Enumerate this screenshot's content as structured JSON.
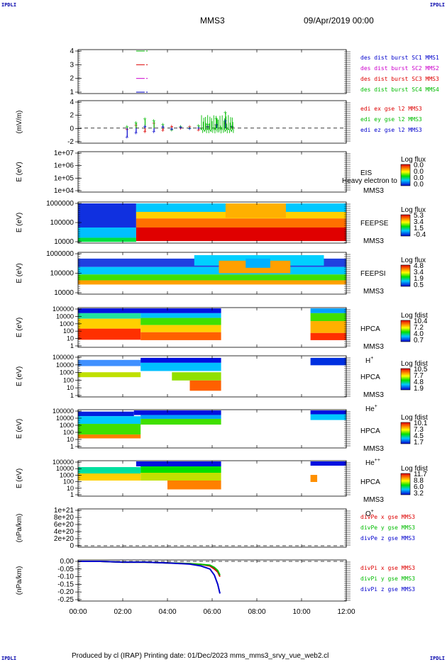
{
  "corner_label": "IPDLI",
  "header": {
    "spacecraft": "MMS3",
    "date": "09/Apr/2019 00:00"
  },
  "footer": {
    "text": "Produced by cl (IRAP)   Printing date: 01/Dec/2023   mms_mms3_srvy_vue_web2.cl"
  },
  "x_axis": {
    "ticks": [
      "00:00",
      "02:00",
      "04:00",
      "06:00",
      "08:00",
      "10:00",
      "12:00"
    ],
    "range_hours": [
      0,
      12
    ]
  },
  "colors": {
    "red": "#dd0000",
    "green": "#00bb00",
    "blue": "#0000cc",
    "magenta": "#cc00cc",
    "pink": "#cc33cc"
  },
  "panels": {
    "des": {
      "yticks": [
        "1",
        "2",
        "3",
        "4"
      ],
      "labels": [
        {
          "text": "des dist burst SC1 MMS1",
          "color": "#0000cc"
        },
        {
          "text": "des dist burst SC2 MMS2",
          "color": "#cc00cc"
        },
        {
          "text": "des dist burst SC3 MMS3",
          "color": "#dd0000"
        },
        {
          "text": "des dist burst SC4 MMS4",
          "color": "#00bb00"
        }
      ]
    },
    "edi": {
      "ylabel": "(mV/m)",
      "yticks": [
        "-2",
        "0",
        "2",
        "4"
      ],
      "labels": [
        {
          "text": "edi ex gse l2 MMS3",
          "color": "#dd0000"
        },
        {
          "text": "edi ey gse l2 MMS3",
          "color": "#00bb00"
        },
        {
          "text": "edi ez gse l2 MMS3",
          "color": "#0000cc"
        }
      ]
    },
    "eis": {
      "ylabel": "E (eV)",
      "yticks": [
        "1e+04",
        "1e+05",
        "1e+06",
        "1e+07"
      ],
      "inst": "EIS",
      "sub": "MMS3",
      "overlay": "Heavy electron to",
      "cb_title": "Log flux",
      "cb": [
        "0.0",
        "0.0",
        "0.0",
        "0.0"
      ]
    },
    "feepse": {
      "ylabel": "E (eV)",
      "yticks": [
        "10000",
        "100000",
        "1000000"
      ],
      "inst": "FEEPSE",
      "sub": "MMS3",
      "cb_title": "Log flux",
      "cb": [
        "5.3",
        "3.4",
        "1.5",
        "-0.4"
      ]
    },
    "feepsi": {
      "ylabel": "E (eV)",
      "yticks": [
        "10000",
        "100000",
        "1000000"
      ],
      "inst": "FEEPSI",
      "sub": "MMS3",
      "cb_title": "Log flux",
      "cb": [
        "4.8",
        "3.4",
        "1.9",
        "0.5"
      ]
    },
    "hpca_h": {
      "ylabel": "E (eV)",
      "yticks": [
        "1",
        "10",
        "100",
        "1000",
        "10000",
        "100000"
      ],
      "inst": "HPCA",
      "sub": "MMS3",
      "species": "H",
      "sup": "+",
      "cb_title": "Log fdist",
      "cb": [
        "10.4",
        "7.2",
        "4.0",
        "0.7"
      ]
    },
    "hpca_he": {
      "ylabel": "E (eV)",
      "yticks": [
        "1",
        "10",
        "100",
        "1000",
        "10000",
        "100000"
      ],
      "inst": "HPCA",
      "sub": "MMS3",
      "species": "He",
      "sup": "+",
      "cb_title": "Log fdist",
      "cb": [
        "10.5",
        "7.7",
        "4.8",
        "1.9"
      ]
    },
    "hpca_hepp": {
      "ylabel": "E (eV)",
      "yticks": [
        "1",
        "10",
        "100",
        "1000",
        "10000",
        "100000"
      ],
      "inst": "HPCA",
      "sub": "MMS3",
      "species": "He",
      "sup": "++",
      "cb_title": "Log fdist",
      "cb": [
        "10.1",
        "7.3",
        "4.5",
        "1.7"
      ]
    },
    "hpca_o": {
      "ylabel": "E (eV)",
      "yticks": [
        "1",
        "10",
        "100",
        "1000",
        "10000",
        "100000"
      ],
      "inst": "HPCA",
      "sub": "MMS3",
      "species": "O",
      "sup": "+",
      "cb_title": "Log fdist",
      "cb": [
        "11.7",
        "8.8",
        "6.0",
        "3.2"
      ]
    },
    "divpe": {
      "ylabel": "(nPa/km)",
      "yticks": [
        "0",
        "2e+20",
        "4e+20",
        "6e+20",
        "8e+20",
        "1e+21"
      ],
      "labels": [
        {
          "text": "divPe x gse MMS3",
          "color": "#dd0000"
        },
        {
          "text": "divPe y gse MMS3",
          "color": "#00bb00"
        },
        {
          "text": "divPe z gse MMS3",
          "color": "#0000cc"
        }
      ]
    },
    "divpi": {
      "ylabel": "(nPa/km)",
      "yticks": [
        "-0.25",
        "-0.20",
        "-0.15",
        "-0.10",
        "-0.05",
        "0.00"
      ],
      "labels": [
        {
          "text": "divPi x gse MMS3",
          "color": "#dd0000"
        },
        {
          "text": "divPi y gse MMS3",
          "color": "#00bb00"
        },
        {
          "text": "divPi z gse MMS3",
          "color": "#0000cc"
        }
      ]
    }
  },
  "chart_data": [
    {
      "type": "scatter",
      "title": "des dist burst",
      "x_unit": "hours",
      "yticks": [
        1,
        2,
        3,
        4
      ],
      "series": [
        {
          "name": "des dist burst SC1 MMS1",
          "x": [
            2.6,
            3.05
          ],
          "y": [
            1,
            1
          ]
        },
        {
          "name": "des dist burst SC2 MMS2",
          "x": [
            2.6,
            3.05
          ],
          "y": [
            2,
            2
          ]
        },
        {
          "name": "des dist burst SC3 MMS3",
          "x": [
            2.6,
            3.05
          ],
          "y": [
            3,
            3
          ]
        },
        {
          "name": "des dist burst SC4 MMS4",
          "x": [
            2.6,
            3.05
          ],
          "y": [
            4,
            4
          ]
        }
      ]
    },
    {
      "type": "line",
      "ylabel": "(mV/m)",
      "ylim": [
        -2.3,
        4.4
      ],
      "x": [
        2.2,
        2.6,
        3.0,
        3.4,
        3.8,
        4.2,
        4.6,
        5.0,
        5.4,
        5.8,
        6.2,
        6.6,
        6.9
      ],
      "series": [
        {
          "name": "edi ex gse l2 MMS3",
          "values": [
            -0.2,
            0.5,
            -0.6,
            0.8,
            -0.4,
            0.3,
            0.0,
            0.2,
            -0.3,
            0.2,
            0.5,
            0.8,
            0.1
          ]
        },
        {
          "name": "edi ey gse l2 MMS3",
          "values": [
            0.2,
            0.9,
            1.5,
            1.2,
            0.6,
            -0.3,
            0.2,
            0.0,
            0.4,
            0.6,
            1.6,
            2.6,
            0.3
          ]
        },
        {
          "name": "edi ez gse l2 MMS3",
          "values": [
            -1.5,
            -0.8,
            0.3,
            -0.6,
            0.2,
            -0.2,
            0.1,
            -0.1,
            0.0,
            0.3,
            0.6,
            1.2,
            0.2
          ]
        }
      ]
    },
    {
      "type": "line",
      "ylabel": "(nPa/km)",
      "ylim": [
        -0.27,
        0.02
      ],
      "x": [
        0,
        1,
        2,
        3,
        4,
        5,
        5.5,
        5.9,
        6.1,
        6.25,
        6.35
      ],
      "series": [
        {
          "name": "divPi x gse MMS3",
          "values": [
            0.0,
            0.0,
            -0.005,
            -0.005,
            -0.01,
            -0.015,
            -0.02,
            -0.03,
            -0.05,
            -0.07,
            -0.1
          ]
        },
        {
          "name": "divPi y gse MMS3",
          "values": [
            0.0,
            0.0,
            -0.005,
            -0.005,
            -0.01,
            -0.015,
            -0.02,
            -0.025,
            -0.04,
            -0.06,
            -0.09
          ]
        },
        {
          "name": "divPi z gse MMS3",
          "values": [
            0.0,
            0.0,
            -0.005,
            -0.005,
            -0.01,
            -0.018,
            -0.03,
            -0.05,
            -0.09,
            -0.15,
            -0.21
          ]
        }
      ]
    }
  ]
}
